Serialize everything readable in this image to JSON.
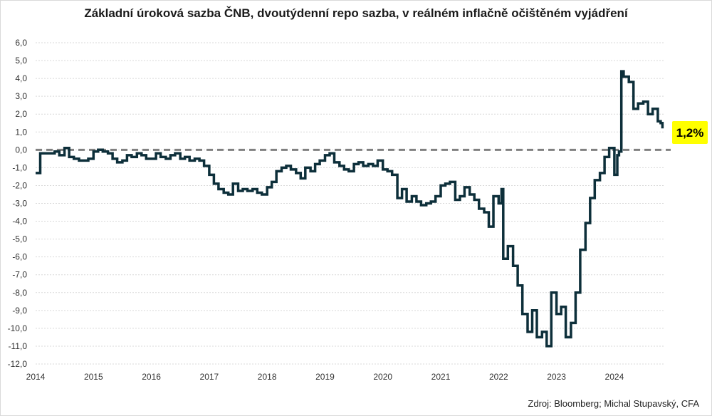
{
  "title": "Základní úroková sazba ČNB, dvoutýdenní repo sazba, v reálném inflačně očištěném vyjádření",
  "source": "Zdroj: Bloomberg; Michal Stupavský, CFA",
  "colors": {
    "line": "#0d2f3a",
    "zero_line": "#808080",
    "grid": "#d9d9d9",
    "badge": "#ffff00"
  },
  "chart_data": {
    "type": "line",
    "title": "Základní úroková sazba ČNB, dvoutýdenní repo sazba, v reálném inflačně očištěném vyjádření",
    "xlabel": "",
    "ylabel": "",
    "xlim": [
      2014.0,
      2024.85
    ],
    "ylim": [
      -12,
      6
    ],
    "grid": true,
    "legend": "none",
    "y_ticks": [
      "6,0",
      "5,0",
      "4,0",
      "3,0",
      "2,0",
      "1,0",
      "0,0",
      "-1,0",
      "-2,0",
      "-3,0",
      "-4,0",
      "-5,0",
      "-6,0",
      "-7,0",
      "-8,0",
      "-9,0",
      "-10,0",
      "-11,0",
      "-12,0"
    ],
    "x_ticks": [
      "2014",
      "2015",
      "2016",
      "2017",
      "2018",
      "2019",
      "2020",
      "2021",
      "2022",
      "2023",
      "2024"
    ],
    "reference_line": {
      "y": 0,
      "style": "dashed"
    },
    "last_value_label": "1,2%",
    "series": [
      {
        "x": [
          2014.0,
          2014.08,
          2014.16,
          2014.25,
          2014.33,
          2014.41,
          2014.5,
          2014.58,
          2014.66,
          2014.75,
          2014.83,
          2014.91,
          2015.0,
          2015.08,
          2015.16,
          2015.25,
          2015.33,
          2015.41,
          2015.5,
          2015.58,
          2015.66,
          2015.75,
          2015.83,
          2015.91,
          2016.0,
          2016.08,
          2016.16,
          2016.25,
          2016.33,
          2016.41,
          2016.5,
          2016.58,
          2016.66,
          2016.75,
          2016.83,
          2016.91,
          2017.0,
          2017.08,
          2017.16,
          2017.25,
          2017.33,
          2017.41,
          2017.5,
          2017.58,
          2017.66,
          2017.75,
          2017.83,
          2017.91,
          2018.0,
          2018.08,
          2018.16,
          2018.25,
          2018.33,
          2018.41,
          2018.5,
          2018.58,
          2018.66,
          2018.75,
          2018.83,
          2018.91,
          2019.0,
          2019.08,
          2019.16,
          2019.25,
          2019.33,
          2019.41,
          2019.5,
          2019.58,
          2019.66,
          2019.75,
          2019.83,
          2019.91,
          2020.0,
          2020.08,
          2020.16,
          2020.25,
          2020.33,
          2020.41,
          2020.5,
          2020.58,
          2020.66,
          2020.75,
          2020.83,
          2020.91,
          2021.0,
          2021.08,
          2021.16,
          2021.25,
          2021.33,
          2021.41,
          2021.5,
          2021.58,
          2021.66,
          2021.75,
          2021.83,
          2021.91,
          2022.0,
          2022.05,
          2022.08,
          2022.16,
          2022.25,
          2022.33,
          2022.41,
          2022.5,
          2022.58,
          2022.66,
          2022.75,
          2022.83,
          2022.91,
          2023.0,
          2023.08,
          2023.16,
          2023.25,
          2023.33,
          2023.41,
          2023.5,
          2023.58,
          2023.66,
          2023.75,
          2023.83,
          2023.91,
          2024.0,
          2024.05,
          2024.08,
          2024.12,
          2024.16,
          2024.25,
          2024.33,
          2024.41,
          2024.5,
          2024.58,
          2024.66,
          2024.75,
          2024.8,
          2024.83
        ],
        "y": [
          -1.3,
          -0.2,
          -0.2,
          -0.2,
          -0.1,
          -0.3,
          0.1,
          -0.4,
          -0.5,
          -0.6,
          -0.6,
          -0.5,
          -0.1,
          0.0,
          -0.1,
          -0.2,
          -0.5,
          -0.7,
          -0.6,
          -0.3,
          -0.4,
          -0.2,
          -0.3,
          -0.5,
          -0.5,
          -0.2,
          -0.4,
          -0.5,
          -0.3,
          -0.2,
          -0.5,
          -0.4,
          -0.6,
          -0.5,
          -0.6,
          -0.9,
          -1.4,
          -1.9,
          -2.2,
          -2.4,
          -2.5,
          -1.9,
          -2.3,
          -2.2,
          -2.3,
          -2.2,
          -2.4,
          -2.5,
          -2.1,
          -1.8,
          -1.2,
          -1.0,
          -0.9,
          -1.1,
          -1.3,
          -1.6,
          -1.0,
          -1.2,
          -0.8,
          -0.6,
          -0.3,
          -0.2,
          -0.7,
          -0.9,
          -1.1,
          -1.2,
          -0.8,
          -0.7,
          -0.9,
          -0.8,
          -0.9,
          -0.6,
          -1.1,
          -1.2,
          -1.4,
          -2.7,
          -2.2,
          -2.9,
          -2.6,
          -2.9,
          -3.1,
          -3.0,
          -2.9,
          -2.6,
          -2.0,
          -1.9,
          -1.8,
          -2.8,
          -2.6,
          -2.1,
          -2.5,
          -2.8,
          -3.3,
          -3.5,
          -4.3,
          -2.6,
          -3.0,
          -2.2,
          -6.1,
          -5.4,
          -6.5,
          -7.6,
          -9.2,
          -10.2,
          -9.0,
          -10.5,
          -10.2,
          -11.0,
          -8.0,
          -9.2,
          -8.8,
          -10.5,
          -9.7,
          -8.0,
          -5.6,
          -4.1,
          -2.7,
          -1.7,
          -1.3,
          -0.4,
          0.1,
          -1.4,
          -0.3,
          -0.1,
          4.4,
          4.1,
          3.8,
          2.3,
          2.6,
          2.7,
          2.0,
          2.3,
          1.6,
          1.5,
          1.2
        ]
      }
    ]
  }
}
